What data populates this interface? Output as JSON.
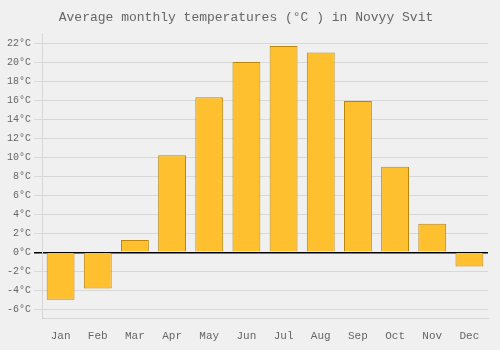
{
  "chart_data": {
    "type": "bar",
    "title": "Average monthly temperatures (°C ) in Novyy Svit",
    "categories": [
      "Jan",
      "Feb",
      "Mar",
      "Apr",
      "May",
      "Jun",
      "Jul",
      "Aug",
      "Sep",
      "Oct",
      "Nov",
      "Dec"
    ],
    "values": [
      -5.0,
      -3.8,
      1.3,
      10.2,
      16.3,
      20.0,
      21.7,
      21.0,
      15.9,
      9.0,
      3.0,
      -1.5
    ],
    "color": "#FFC030",
    "ylim": [
      -7,
      23
    ],
    "yticks": [
      {
        "value": -6,
        "label": "-6°C"
      },
      {
        "value": -4,
        "label": "-4°C"
      },
      {
        "value": -2,
        "label": "-2°C"
      },
      {
        "value": 0,
        "label": "0°C"
      },
      {
        "value": 2,
        "label": "2°C"
      },
      {
        "value": 4,
        "label": "4°C"
      },
      {
        "value": 6,
        "label": "6°C"
      },
      {
        "value": 8,
        "label": "8°C"
      },
      {
        "value": 10,
        "label": "10°C"
      },
      {
        "value": 12,
        "label": "12°C"
      },
      {
        "value": 14,
        "label": "14°C"
      },
      {
        "value": 16,
        "label": "16°C"
      },
      {
        "value": 18,
        "label": "18°C"
      },
      {
        "value": 20,
        "label": "20°C"
      },
      {
        "value": 22,
        "label": "22°C"
      }
    ],
    "grid": true
  }
}
